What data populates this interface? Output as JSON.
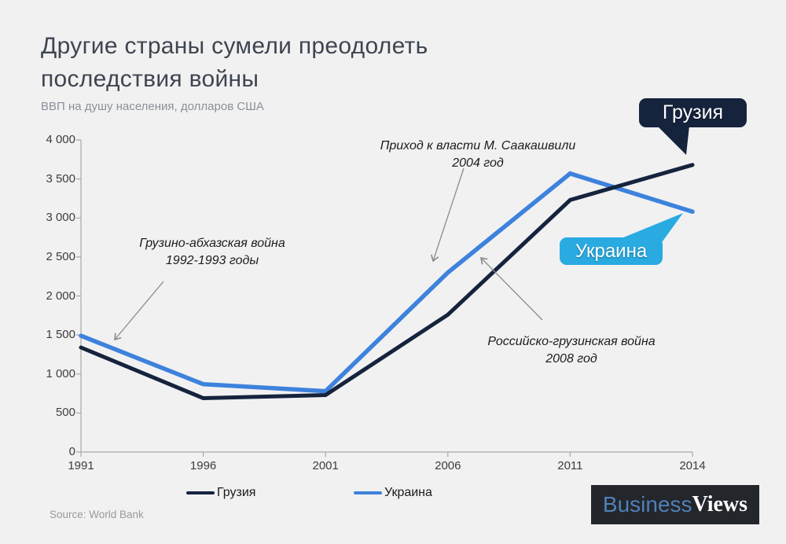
{
  "page": {
    "title_line1": "Другие страны сумели преодолеть",
    "title_line2": "последствия войны",
    "subtitle": "ВВП на душу населения, долларов США",
    "source": "Source: World Bank",
    "logo": {
      "part1": "Business",
      "part2": "Views"
    }
  },
  "chart_data": {
    "type": "line",
    "title": "Другие страны сумели преодолеть последствия войны",
    "subtitle": "ВВП на душу населения, долларов США",
    "categories": [
      "1991",
      "1996",
      "2001",
      "2006",
      "2011",
      "2014"
    ],
    "series": [
      {
        "name": "Грузия",
        "color": "#15233d",
        "values": [
          1340,
          690,
          730,
          1760,
          3230,
          3680
        ]
      },
      {
        "name": "Украина",
        "color": "#3d82dc",
        "values": [
          1490,
          870,
          780,
          2300,
          3570,
          3080
        ]
      }
    ],
    "ylim": [
      0,
      4000
    ],
    "yticks": [
      0,
      500,
      1000,
      1500,
      2000,
      2500,
      3000,
      3500,
      4000
    ],
    "ytick_labels": [
      "0",
      "500",
      "1 000",
      "1 500",
      "2 000",
      "2 500",
      "3 000",
      "3 500",
      "4 000"
    ],
    "grid": false,
    "legend_position": "bottom",
    "annotations": [
      {
        "line1": "Грузино-абхазская война",
        "line2": "1992-1993 годы"
      },
      {
        "line1": "Приход к власти М. Саакашвили",
        "line2": "2004 год"
      },
      {
        "line1": "Российско-грузинская война",
        "line2": "2008 год"
      }
    ],
    "callouts": [
      {
        "label": "Грузия",
        "color": "#15233d"
      },
      {
        "label": "Украина",
        "color": "#29abe2"
      }
    ]
  }
}
